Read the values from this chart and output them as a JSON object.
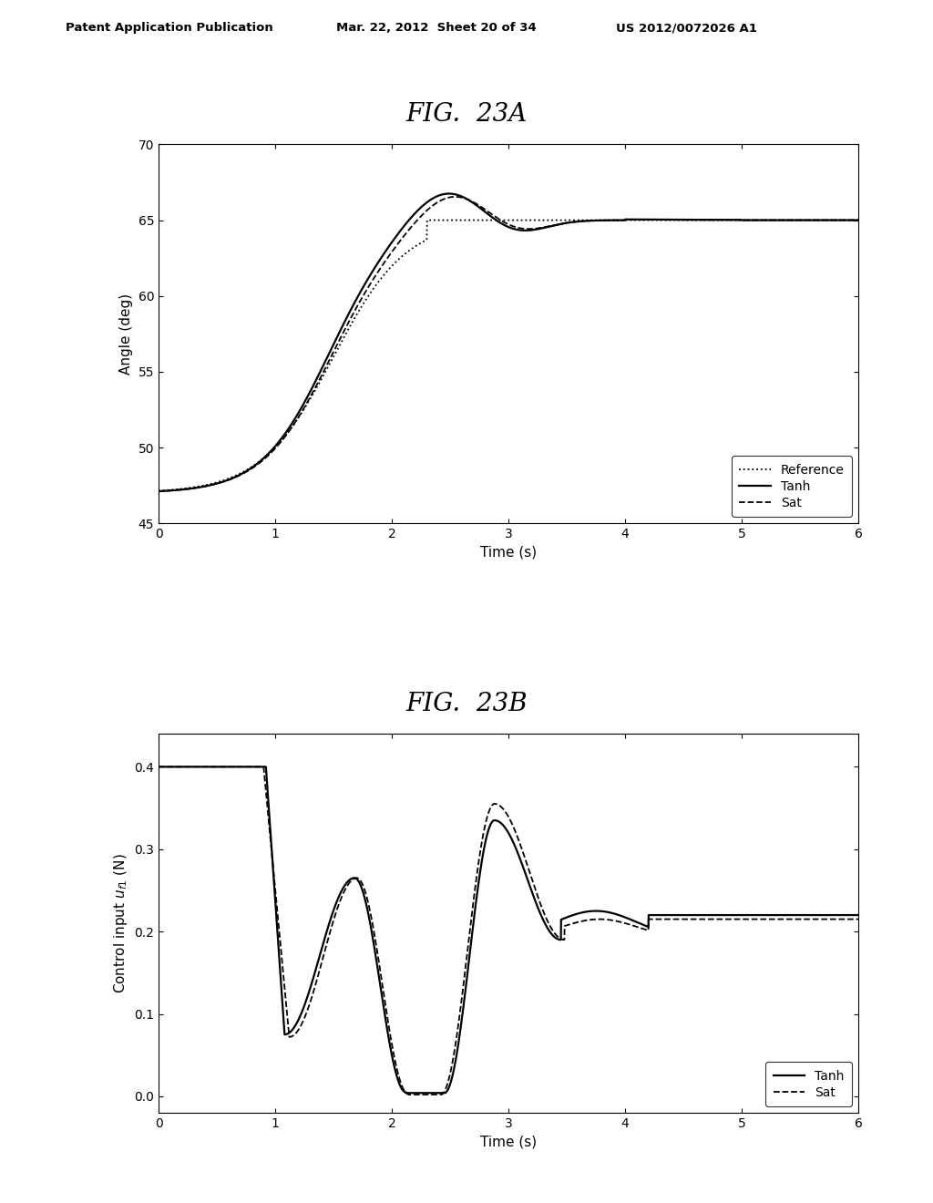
{
  "fig_title_a": "FIG.  23A",
  "fig_title_b": "FIG.  23B",
  "header_left": "Patent Application Publication",
  "header_mid": "Mar. 22, 2012  Sheet 20 of 34",
  "header_right": "US 2012/0072026 A1",
  "plot_a": {
    "ylabel": "Angle (deg)",
    "xlabel": "Time (s)",
    "xlim": [
      0,
      6
    ],
    "ylim": [
      45,
      70
    ],
    "yticks": [
      45,
      50,
      55,
      60,
      65,
      70
    ],
    "xticks": [
      0,
      1,
      2,
      3,
      4,
      5,
      6
    ]
  },
  "plot_b": {
    "ylabel": "Control input uᵉ3 (N)",
    "xlabel": "Time (s)",
    "xlim": [
      0,
      6
    ],
    "ylim": [
      -0.02,
      0.44
    ],
    "yticks": [
      0,
      0.1,
      0.2,
      0.3,
      0.4
    ],
    "xticks": [
      0,
      1,
      2,
      3,
      4,
      5,
      6
    ]
  },
  "background_color": "#ffffff",
  "line_color": "#000000"
}
